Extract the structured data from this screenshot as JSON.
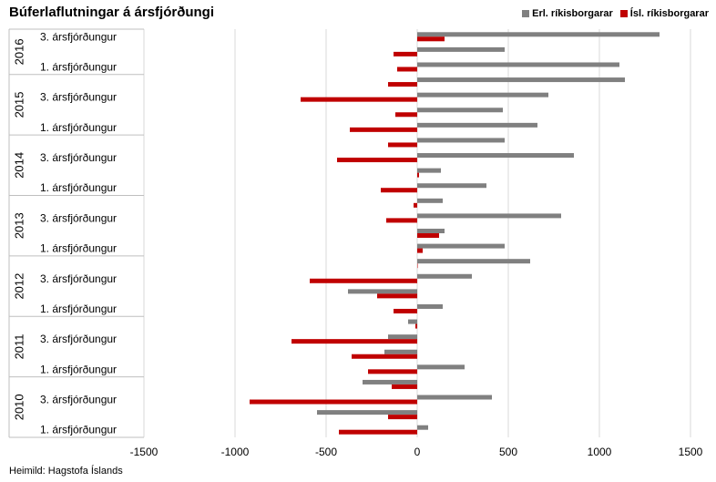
{
  "chart_data": {
    "type": "bar",
    "orientation": "horizontal",
    "title": "Búferlaflutningar á ársfjórðungi",
    "source": "Heimild: Hagstofa Íslands",
    "xlim": [
      -1500,
      1500
    ],
    "x_ticks": [
      "-1500",
      "-1000",
      "-500",
      "0",
      "500",
      "1000",
      "1500"
    ],
    "x_tick_values": [
      -1500,
      -1000,
      -500,
      0,
      500,
      1000,
      1500
    ],
    "grid": "vertical",
    "legend_position": "top-right",
    "years": [
      "2010",
      "2011",
      "2012",
      "2013",
      "2014",
      "2015",
      "2016"
    ],
    "category_labels": [
      "1. ársfjórðungur",
      "3. ársfjórðungur"
    ],
    "quarters_order": "bottom-to-top, 2010 Q1 through 2016 Q3",
    "quarters": [
      "2010 Q1",
      "2010 Q2",
      "2010 Q3",
      "2010 Q4",
      "2011 Q1",
      "2011 Q2",
      "2011 Q3",
      "2011 Q4",
      "2012 Q1",
      "2012 Q2",
      "2012 Q3",
      "2012 Q4",
      "2013 Q1",
      "2013 Q2",
      "2013 Q3",
      "2013 Q4",
      "2014 Q1",
      "2014 Q2",
      "2014 Q3",
      "2014 Q4",
      "2015 Q1",
      "2015 Q2",
      "2015 Q3",
      "2015 Q4",
      "2016 Q1",
      "2016 Q2",
      "2016 Q3"
    ],
    "series": [
      {
        "name": "Erl. ríkisborgarar",
        "color": "#808080",
        "values": [
          60,
          -550,
          410,
          -300,
          260,
          -180,
          -160,
          -50,
          140,
          -380,
          300,
          620,
          480,
          150,
          790,
          140,
          380,
          130,
          860,
          480,
          660,
          470,
          720,
          1140,
          1110,
          480,
          1330
        ]
      },
      {
        "name": "Ísl. ríkisborgarar",
        "color": "#c00000",
        "values": [
          -430,
          -160,
          -920,
          -140,
          -270,
          -360,
          -690,
          -10,
          -130,
          -220,
          -590,
          0,
          30,
          120,
          -170,
          -20,
          -200,
          10,
          -440,
          -160,
          -370,
          -120,
          -640,
          -160,
          -110,
          -130,
          150
        ]
      }
    ]
  }
}
